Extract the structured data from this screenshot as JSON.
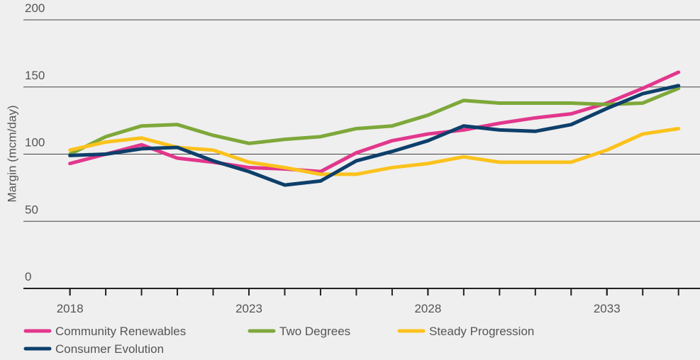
{
  "chart_data": {
    "type": "line",
    "y_label": "Margin (mcm/day)",
    "x": [
      2018,
      2019,
      2020,
      2021,
      2022,
      2023,
      2024,
      2025,
      2026,
      2027,
      2028,
      2029,
      2030,
      2031,
      2032,
      2033,
      2034,
      2035
    ],
    "xlim": [
      2016.7,
      2035.6
    ],
    "xticks": [
      2018,
      2023,
      2028,
      2033
    ],
    "ylim": [
      0,
      200
    ],
    "yticks": [
      0,
      50,
      100,
      150,
      200
    ],
    "grid": true,
    "series": [
      {
        "name": "Community Renewables",
        "color": "#e2378c",
        "values": [
          93,
          100,
          107,
          97,
          94,
          90,
          89,
          87,
          101,
          110,
          115,
          118,
          123,
          127,
          130,
          138,
          149,
          161
        ]
      },
      {
        "name": "Two Degrees",
        "color": "#7ea83a",
        "values": [
          100,
          113,
          121,
          122,
          114,
          108,
          111,
          113,
          119,
          121,
          129,
          140,
          138,
          138,
          138,
          137,
          138,
          149
        ]
      },
      {
        "name": "Steady Progression",
        "color": "#fbc21c",
        "values": [
          103,
          109,
          112,
          105,
          103,
          94,
          90,
          85,
          85,
          90,
          93,
          98,
          94,
          94,
          94,
          103,
          115,
          119
        ]
      },
      {
        "name": "Consumer Evolution",
        "color": "#0e3f6b",
        "values": [
          99,
          100,
          104,
          105,
          95,
          87,
          77,
          80,
          95,
          102,
          110,
          121,
          118,
          117,
          122,
          134,
          145,
          151
        ]
      }
    ]
  }
}
